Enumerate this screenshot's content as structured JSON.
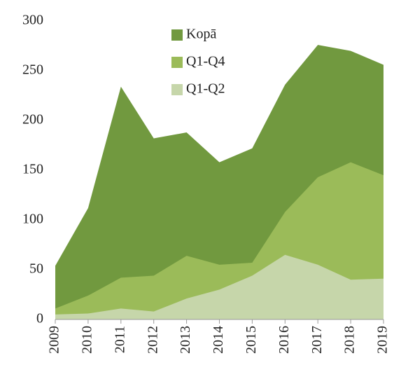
{
  "chart_data": {
    "type": "area",
    "categories": [
      "2009",
      "2010",
      "2011",
      "2012",
      "2013",
      "2014",
      "2015",
      "2016",
      "2017",
      "2018",
      "2019"
    ],
    "series": [
      {
        "name": "Kopā",
        "color": "#71993f",
        "values": [
          54,
          112,
          234,
          182,
          188,
          158,
          172,
          236,
          276,
          270,
          256
        ]
      },
      {
        "name": "Q1-Q4",
        "color": "#9bbb59",
        "values": [
          11,
          24,
          42,
          44,
          64,
          55,
          57,
          108,
          143,
          158,
          145
        ]
      },
      {
        "name": "Q1-Q2",
        "color": "#c6d6aa",
        "values": [
          5,
          6,
          11,
          8,
          21,
          30,
          44,
          65,
          55,
          40,
          41
        ]
      }
    ],
    "ylim": [
      0,
      300
    ],
    "yticks": [
      0,
      50,
      100,
      150,
      200,
      250,
      300
    ],
    "legend": "top"
  }
}
